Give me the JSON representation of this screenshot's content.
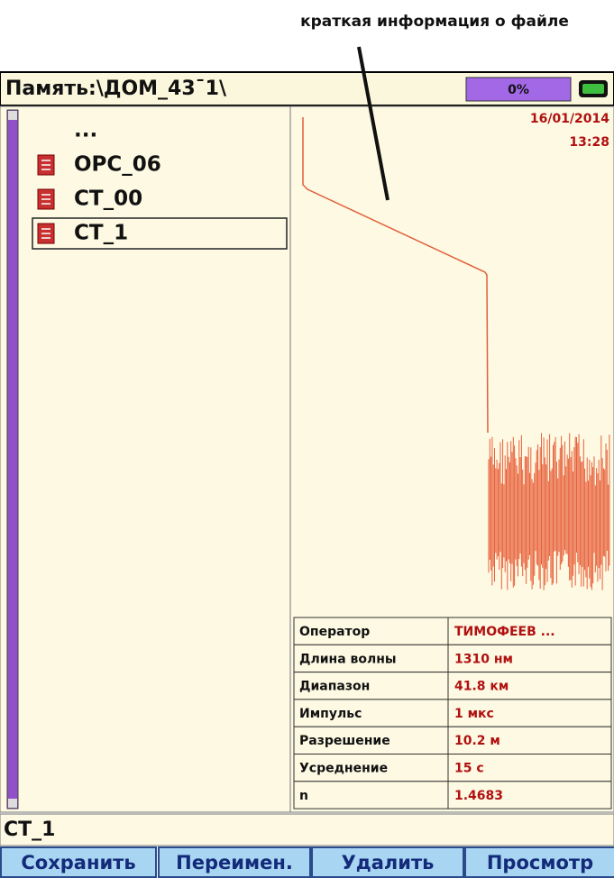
{
  "annotation": "краткая информация о файле",
  "header": {
    "path": "Память:\\ДОМ_43¯1\\",
    "progress": "0%"
  },
  "file_list": [
    "...",
    "OPC_06",
    "CT_00",
    "CT_1"
  ],
  "selected": "CT_1",
  "info": {
    "date": "16/01/2014",
    "time": "13:28"
  },
  "table": {
    "rows": [
      [
        "Оператор",
        "ТИМОФЕЕВ ..."
      ],
      [
        "Длина волны",
        "1310 нм"
      ],
      [
        "Диапазон",
        "41.8 км"
      ],
      [
        "Импульс",
        "1 мкс"
      ],
      [
        "Разрешение",
        "10.2 м"
      ],
      [
        "Усреднение",
        "15 с"
      ],
      [
        "n",
        "1.4683"
      ]
    ]
  },
  "input": "CT_1",
  "buttons": [
    "Сохранить",
    "Переимен.",
    "Удалить",
    "Просмотр"
  ]
}
